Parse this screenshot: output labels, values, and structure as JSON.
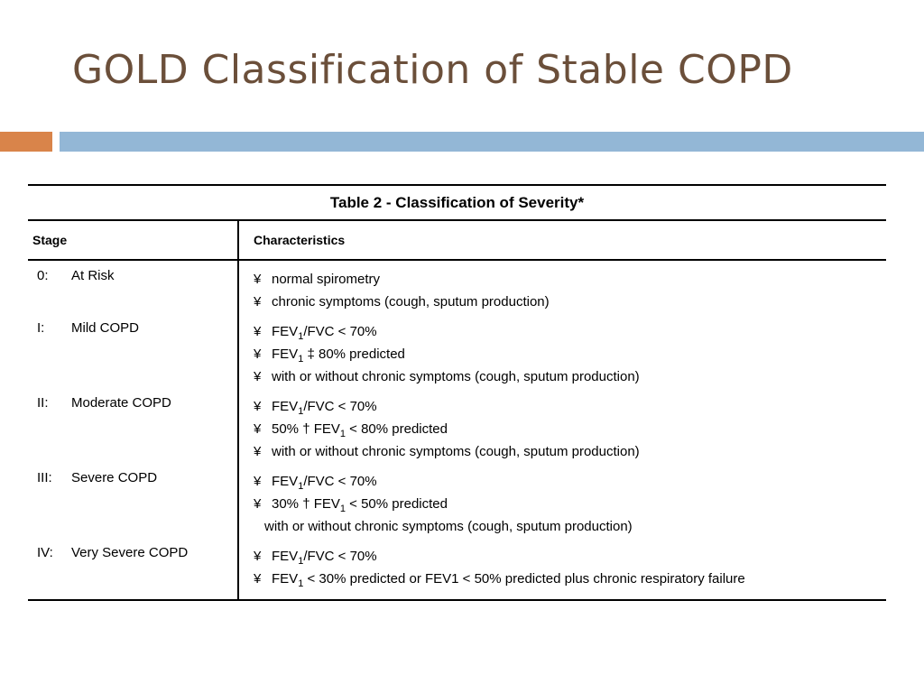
{
  "slide": {
    "title": "GOLD Classification of Stable COPD",
    "colors": {
      "title": "#6b4f3a",
      "accent_orange": "#d9844a",
      "accent_blue": "#93b7d6"
    }
  },
  "table": {
    "caption": "Table 2 - Classification of Severity*",
    "headers": {
      "stage": "Stage",
      "characteristics": "Characteristics"
    },
    "bullet_glyph": "¥",
    "rows": [
      {
        "stage_num": "0:",
        "stage_name": "At Risk",
        "lines": [
          {
            "bullet": true,
            "text": "normal spirometry"
          },
          {
            "bullet": true,
            "text": "chronic symptoms (cough, sputum production)"
          }
        ]
      },
      {
        "stage_num": "I:",
        "stage_name": "Mild COPD",
        "lines": [
          {
            "bullet": true,
            "pre": "FEV",
            "sub": "1",
            "post": "/FVC < 70%"
          },
          {
            "bullet": true,
            "pre": "FEV",
            "sub": "1",
            "post": " ‡ 80% predicted"
          },
          {
            "bullet": true,
            "text": "with or without chronic symptoms (cough, sputum production)"
          }
        ]
      },
      {
        "stage_num": "II:",
        "stage_name": "Moderate COPD",
        "lines": [
          {
            "bullet": true,
            "pre": "FEV",
            "sub": "1",
            "post": "/FVC < 70%"
          },
          {
            "bullet": true,
            "pre": "50% † FEV",
            "sub": "1",
            "post": " < 80% predicted"
          },
          {
            "bullet": true,
            "text": "with or without chronic symptoms (cough, sputum production)"
          }
        ]
      },
      {
        "stage_num": "III:",
        "stage_name": "Severe COPD",
        "lines": [
          {
            "bullet": true,
            "pre": "FEV",
            "sub": "1",
            "post": "/FVC < 70%"
          },
          {
            "bullet": true,
            "pre": "30% † FEV",
            "sub": "1",
            "post": " < 50% predicted"
          },
          {
            "bullet": false,
            "text": "with or without chronic symptoms (cough, sputum production)"
          }
        ]
      },
      {
        "stage_num": "IV:",
        "stage_name": "Very Severe COPD",
        "lines": [
          {
            "bullet": true,
            "pre": "FEV",
            "sub": "1",
            "post": "/FVC < 70%"
          },
          {
            "bullet": true,
            "pre": "FEV",
            "sub": "1",
            "post": " < 30% predicted or FEV1 < 50% predicted plus chronic respiratory failure"
          }
        ]
      }
    ]
  }
}
